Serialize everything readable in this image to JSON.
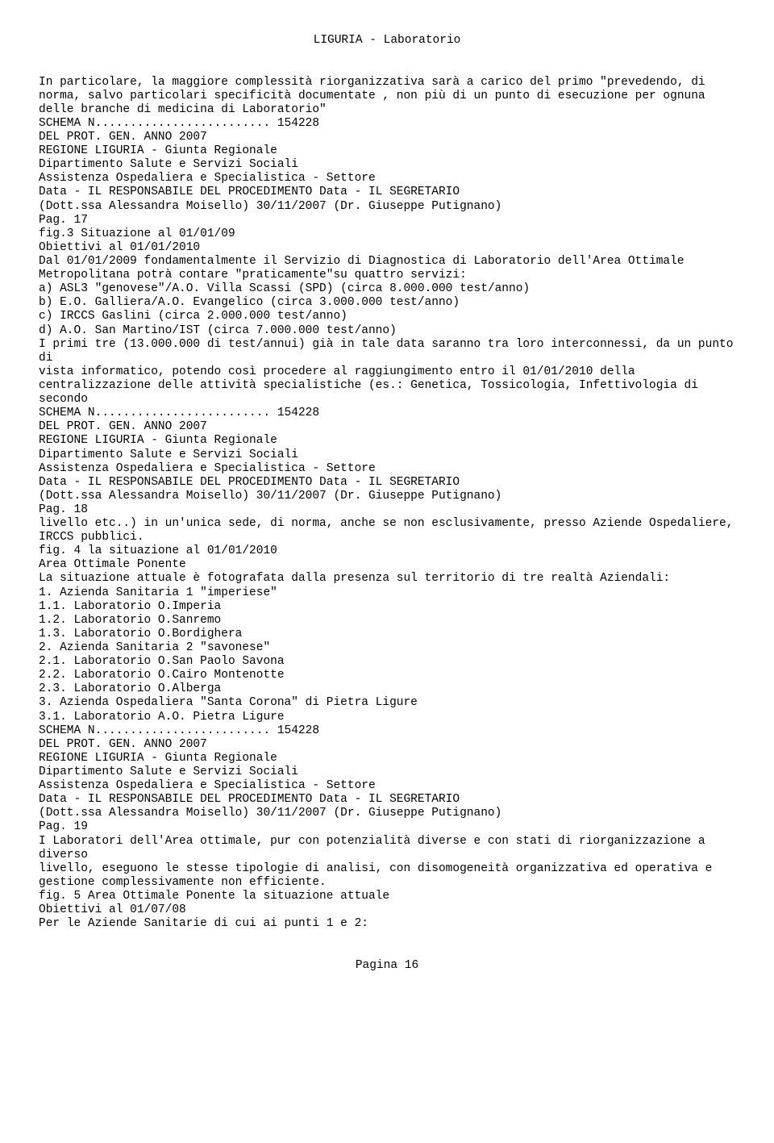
{
  "header": "LIGURIA - Laboratorio",
  "body_lines": [
    "In particolare, la maggiore complessità riorganizzativa sarà a carico del primo \"prevedendo, di",
    "norma, salvo particolari specificità documentate , non più di un punto di esecuzione per ognuna",
    "delle branche di medicina di Laboratorio\"",
    "SCHEMA N......................... 154228",
    "DEL PROT. GEN. ANNO 2007",
    "REGIONE LIGURIA - Giunta Regionale",
    "Dipartimento Salute e Servizi Sociali",
    "Assistenza Ospedaliera e Specialistica - Settore",
    "Data - IL RESPONSABILE DEL PROCEDIMENTO Data - IL SEGRETARIO",
    "(Dott.ssa Alessandra Moisello) 30/11/2007 (Dr. Giuseppe Putignano)",
    "Pag. 17",
    "fig.3 Situazione al 01/01/09",
    "Obiettivi al 01/01/2010",
    "Dal 01/01/2009 fondamentalmente il Servizio di Diagnostica di Laboratorio dell'Area Ottimale",
    "Metropolitana potrà contare \"praticamente\"su quattro servizi:",
    "a) ASL3 \"genovese\"/A.O. Villa Scassi (SPD) (circa 8.000.000 test/anno)",
    "b) E.O. Galliera/A.O. Evangelico (circa 3.000.000 test/anno)",
    "c) IRCCS Gaslini (circa 2.000.000 test/anno)",
    "d) A.O. San Martino/IST (circa 7.000.000 test/anno)",
    "I primi tre (13.000.000 di test/annui) già in tale data saranno tra loro interconnessi, da un punto di",
    "vista informatico, potendo così procedere al raggiungimento entro il 01/01/2010 della",
    "centralizzazione delle attività specialistiche (es.: Genetica, Tossicologia, Infettivologia di secondo",
    "SCHEMA N......................... 154228",
    "DEL PROT. GEN. ANNO 2007",
    "REGIONE LIGURIA - Giunta Regionale",
    "Dipartimento Salute e Servizi Sociali",
    "Assistenza Ospedaliera e Specialistica - Settore",
    "Data - IL RESPONSABILE DEL PROCEDIMENTO Data - IL SEGRETARIO",
    "(Dott.ssa Alessandra Moisello) 30/11/2007 (Dr. Giuseppe Putignano)",
    "Pag. 18",
    "livello etc..) in un'unica sede, di norma, anche se non esclusivamente, presso Aziende Ospedaliere,",
    "IRCCS pubblici.",
    "fig. 4 la situazione al 01/01/2010",
    "Area Ottimale Ponente",
    "La situazione attuale è fotografata dalla presenza sul territorio di tre realtà Aziendali:",
    "1. Azienda Sanitaria 1 \"imperiese\"",
    "1.1. Laboratorio O.Imperia",
    "1.2. Laboratorio O.Sanremo",
    "1.3. Laboratorio O.Bordighera",
    "2. Azienda Sanitaria 2 \"savonese\"",
    "2.1. Laboratorio O.San Paolo Savona",
    "2.2. Laboratorio O.Cairo Montenotte",
    "2.3. Laboratorio O.Alberga",
    "3. Azienda Ospedaliera \"Santa Corona\" di Pietra Ligure",
    "3.1. Laboratorio A.O. Pietra Ligure",
    "SCHEMA N......................... 154228",
    "DEL PROT. GEN. ANNO 2007",
    "REGIONE LIGURIA - Giunta Regionale",
    "Dipartimento Salute e Servizi Sociali",
    "Assistenza Ospedaliera e Specialistica - Settore",
    "Data - IL RESPONSABILE DEL PROCEDIMENTO Data - IL SEGRETARIO",
    "(Dott.ssa Alessandra Moisello) 30/11/2007 (Dr. Giuseppe Putignano)",
    "Pag. 19",
    "I Laboratori dell'Area ottimale, pur con potenzialità diverse e con stati di riorganizzazione a diverso",
    "livello, eseguono le stesse tipologie di analisi, con disomogeneità organizzativa ed operativa e",
    "gestione complessivamente non efficiente.",
    "fig. 5 Area Ottimale Ponente la situazione attuale",
    "Obiettivi al 01/07/08",
    "Per le Aziende Sanitarie di cui ai punti 1 e 2:"
  ],
  "footer": "Pagina 16"
}
